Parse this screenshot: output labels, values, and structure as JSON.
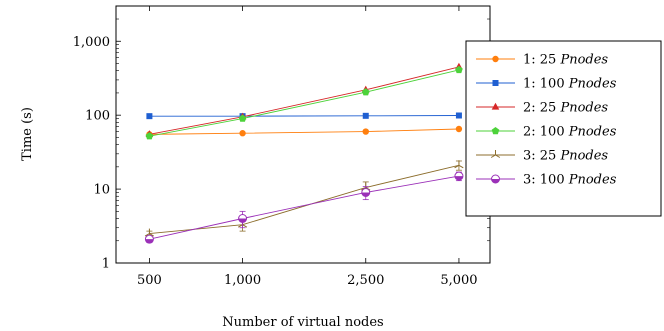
{
  "chart_data": {
    "type": "line",
    "xlabel": "Number of virtual nodes",
    "ylabel": "Time (s)",
    "x_scale": "log",
    "y_scale": "log",
    "x": [
      500,
      1000,
      2500,
      5000
    ],
    "xtick_labels": [
      "500",
      "1,000",
      "2,500",
      "5,000"
    ],
    "yticks": [
      1,
      10,
      100,
      1000
    ],
    "ytick_labels": [
      "1",
      "10",
      "100",
      "1,000"
    ],
    "ylim": [
      1,
      3000
    ],
    "legend_position": "right",
    "series": [
      {
        "name": "1: 25 Pnodes",
        "legend_prefix": "1: 25 ",
        "legend_italic": "Pnodes",
        "color": "#ff7f0e",
        "marker": "circle",
        "values": [
          55,
          57,
          60,
          65
        ]
      },
      {
        "name": "1: 100 Pnodes",
        "legend_prefix": "1: 100 ",
        "legend_italic": "Pnodes",
        "color": "#1f5fd1",
        "marker": "square",
        "values": [
          97,
          97,
          98,
          99
        ]
      },
      {
        "name": "2: 25 Pnodes",
        "legend_prefix": "2: 25 ",
        "legend_italic": "Pnodes",
        "color": "#d62728",
        "marker": "triangle",
        "values": [
          55,
          95,
          220,
          450
        ]
      },
      {
        "name": "2: 100 Pnodes",
        "legend_prefix": "2: 100 ",
        "legend_italic": "Pnodes",
        "color": "#4dd23a",
        "marker": "pentagon",
        "values": [
          52,
          90,
          205,
          410
        ]
      },
      {
        "name": "3: 25 Pnodes",
        "legend_prefix": "3: 25 ",
        "legend_italic": "Pnodes",
        "color": "#8c6d2c",
        "marker": "star",
        "values": [
          2.5,
          3.3,
          10.5,
          21
        ],
        "errors": [
          0.2,
          0.6,
          2,
          3
        ]
      },
      {
        "name": "3: 100 Pnodes",
        "legend_prefix": "3: 100 ",
        "legend_italic": "Pnodes",
        "color": "#9b30b8",
        "marker": "halfcircle",
        "values": [
          2.1,
          4.0,
          9.0,
          15
        ],
        "errors": [
          0.2,
          1.0,
          1.8,
          2
        ]
      }
    ]
  }
}
